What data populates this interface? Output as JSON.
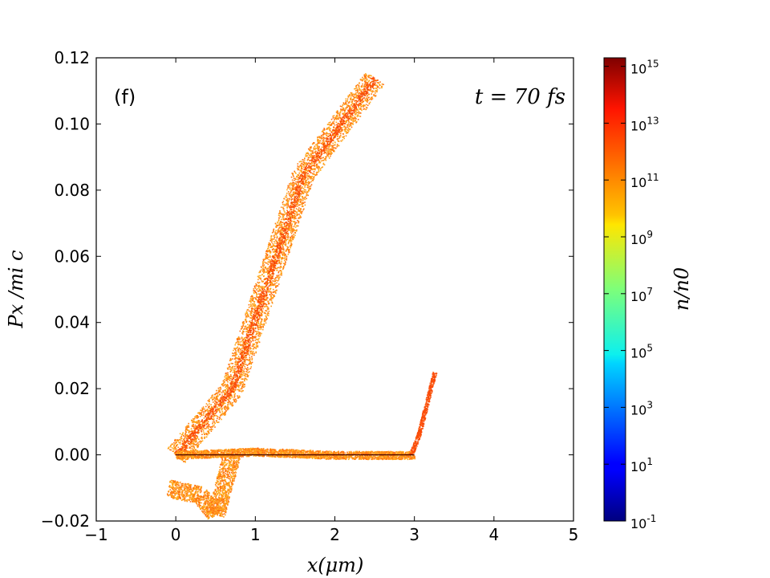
{
  "chart_data": {
    "type": "scatter",
    "title": "",
    "panel_label": "(f)",
    "annotation": "t = 70 fs",
    "xlabel": "x(μm)",
    "ylabel": "Px /mi c",
    "xlim": [
      -1,
      5
    ],
    "ylim": [
      -0.02,
      0.12
    ],
    "x_ticks": [
      -1,
      0,
      1,
      2,
      3,
      4,
      5
    ],
    "x_tick_labels": [
      "−1",
      "0",
      "1",
      "2",
      "3",
      "4",
      "5"
    ],
    "y_ticks": [
      -0.02,
      0.0,
      0.02,
      0.04,
      0.06,
      0.08,
      0.1,
      0.12
    ],
    "y_tick_labels": [
      "−0.02",
      "0.00",
      "0.02",
      "0.04",
      "0.06",
      "0.08",
      "0.10",
      "0.12"
    ],
    "grid": false,
    "colorbar": {
      "label": "n/n0",
      "scale": "log",
      "colormap": "jet",
      "range_exponents": [
        -1,
        15.3
      ],
      "tick_bases": [
        "10",
        "10",
        "10",
        "10",
        "10",
        "10",
        "10",
        "10",
        "10"
      ],
      "tick_exponents": [
        "-1",
        "1",
        "3",
        "5",
        "7",
        "9",
        "11",
        "13",
        "15"
      ]
    },
    "series": [
      {
        "points": [
          [
            0.0,
            0.0
          ],
          [
            0.7,
            0.02
          ],
          [
            1.6,
            0.085
          ],
          [
            2.5,
            0.114
          ]
        ]
      },
      {
        "points": [
          [
            -0.1,
            -0.01
          ],
          [
            0.3,
            -0.012
          ],
          [
            0.5,
            -0.018
          ],
          [
            0.7,
            0.0
          ]
        ]
      },
      {
        "points": [
          [
            0.0,
            0.0
          ],
          [
            1.0,
            0.001
          ],
          [
            2.0,
            0.0
          ],
          [
            3.0,
            0.0
          ]
        ]
      },
      {
        "points": [
          [
            2.95,
            0.0
          ],
          [
            3.05,
            0.006
          ],
          [
            3.25,
            0.025
          ]
        ]
      }
    ]
  }
}
